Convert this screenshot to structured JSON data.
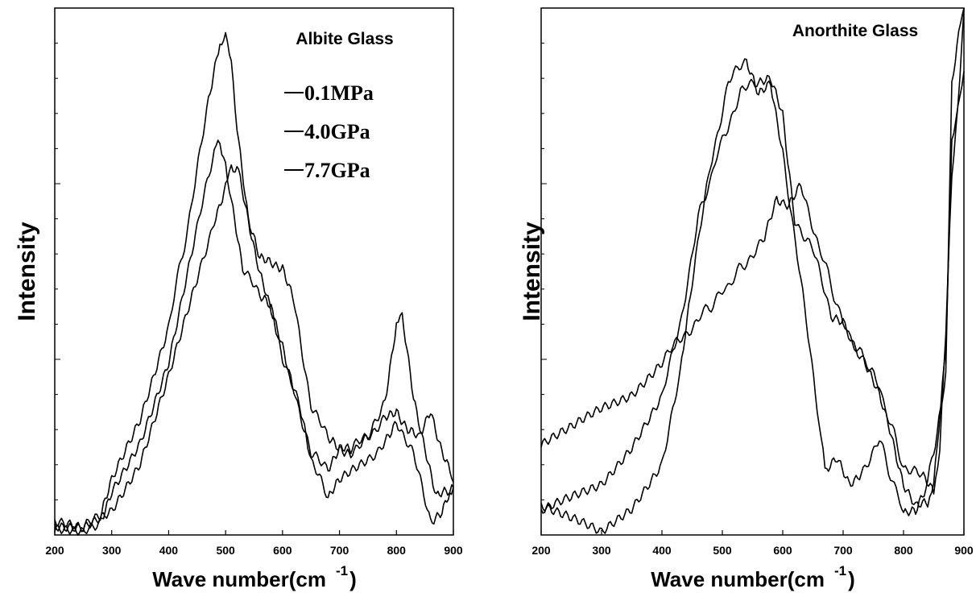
{
  "chart_data": [
    {
      "type": "line",
      "title": "Albite Glass",
      "xlabel": "Wave number(cm",
      "xlabel_sup": "-1",
      "xlabel_close": ")",
      "ylabel": "Intensity",
      "xlim": [
        200,
        900
      ],
      "ylim": [
        0,
        100
      ],
      "xticks": [
        "200",
        "300",
        "400",
        "500",
        "600",
        "700",
        "800",
        "900"
      ],
      "legend_placement": "top-right",
      "series": [
        {
          "name": "0.1MPa",
          "x": [
            200,
            250,
            280,
            300,
            350,
            400,
            440,
            470,
            490,
            500,
            510,
            520,
            540,
            560,
            580,
            600,
            620,
            650,
            680,
            700,
            720,
            750,
            780,
            800,
            810,
            830,
            850,
            870,
            890,
            900
          ],
          "y": [
            2,
            1,
            4,
            10,
            22,
            40,
            62,
            83,
            93,
            94,
            90,
            78,
            60,
            52,
            52,
            51,
            44,
            25,
            18,
            16,
            16,
            18,
            26,
            40,
            41,
            26,
            17,
            7,
            8,
            9
          ]
        },
        {
          "name": "4.0GPa",
          "x": [
            200,
            250,
            280,
            300,
            350,
            400,
            450,
            480,
            490,
            500,
            510,
            530,
            560,
            580,
            600,
            630,
            650,
            680,
            700,
            750,
            780,
            800,
            830,
            860,
            880,
            900
          ],
          "y": [
            1,
            0,
            3,
            8,
            18,
            33,
            58,
            73,
            74,
            71,
            63,
            51,
            45,
            43,
            34,
            24,
            14,
            7,
            10,
            14,
            18,
            22,
            15,
            3,
            4,
            9
          ]
        },
        {
          "name": "7.7GPa",
          "x": [
            200,
            250,
            300,
            350,
            400,
            450,
            480,
            500,
            510,
            520,
            540,
            560,
            580,
            600,
            620,
            650,
            680,
            700,
            720,
            750,
            780,
            800,
            820,
            840,
            860,
            880,
            900
          ],
          "y": [
            2,
            1,
            5,
            14,
            30,
            48,
            60,
            66,
            70,
            70,
            60,
            50,
            42,
            36,
            28,
            15,
            13,
            16,
            16,
            19,
            22,
            24,
            20,
            18,
            24,
            16,
            10
          ]
        }
      ]
    },
    {
      "type": "line",
      "title": "Anorthite Glass",
      "xlabel": "Wave number(cm",
      "xlabel_sup": "-1",
      "xlabel_close": ")",
      "ylabel": "Intensity",
      "xlim": [
        200,
        900
      ],
      "ylim": [
        0,
        100
      ],
      "xticks": [
        "200",
        "300",
        "400",
        "500",
        "600",
        "700",
        "800",
        "900"
      ],
      "series": [
        {
          "name": "",
          "x": [
            200,
            250,
            300,
            350,
            400,
            430,
            450,
            480,
            510,
            540,
            560,
            580,
            600,
            630,
            660,
            670,
            690,
            710,
            730,
            760,
            800,
            820,
            840,
            850,
            870,
            880,
            900
          ],
          "y": [
            6,
            3,
            0,
            5,
            14,
            30,
            48,
            70,
            86,
            90,
            83,
            86,
            73,
            48,
            22,
            12,
            14,
            10,
            12,
            18,
            4,
            4,
            10,
            16,
            30,
            85,
            102
          ]
        },
        {
          "name": "",
          "x": [
            200,
            250,
            300,
            350,
            400,
            430,
            460,
            500,
            540,
            570,
            590,
            610,
            630,
            660,
            700,
            740,
            760,
            780,
            800,
            820,
            840,
            850,
            870,
            880,
            890,
            900
          ],
          "y": [
            17,
            20,
            24,
            27,
            33,
            37,
            41,
            46,
            52,
            56,
            64,
            63,
            66,
            55,
            40,
            32,
            26,
            19,
            10,
            5,
            6,
            10,
            36,
            75,
            80,
            88
          ]
        },
        {
          "name": "",
          "x": [
            200,
            250,
            300,
            350,
            400,
            430,
            460,
            500,
            530,
            560,
            580,
            600,
            620,
            650,
            680,
            700,
            730,
            760,
            800,
            830,
            850,
            860,
            870,
            880,
            890,
            900
          ],
          "y": [
            4,
            7,
            10,
            17,
            26,
            40,
            60,
            75,
            84,
            86,
            86,
            80,
            60,
            54,
            42,
            40,
            34,
            28,
            13,
            11,
            8,
            17,
            38,
            68,
            82,
            100
          ]
        }
      ]
    }
  ]
}
